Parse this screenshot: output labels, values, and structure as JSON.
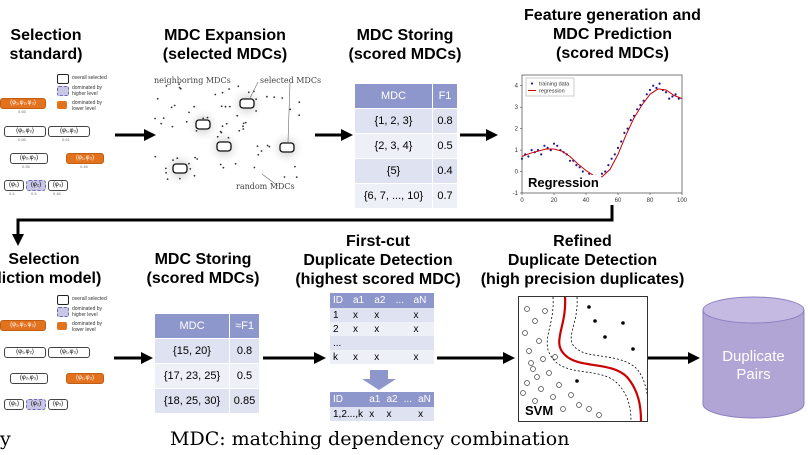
{
  "headers": {
    "sel_std": [
      "Selection",
      "standard)"
    ],
    "expansion": [
      "MDC Expansion",
      "(selected MDCs)"
    ],
    "storing1": [
      "MDC Storing",
      "(scored MDCs)"
    ],
    "featgen": [
      "Feature generation and",
      "MDC Prediction",
      "(scored MDCs)"
    ],
    "sel_pred": [
      "Selection",
      "diction model)"
    ],
    "storing2": [
      "MDC Storing",
      "(scored MDCs)"
    ],
    "firstcut": [
      "First-cut",
      "Duplicate Detection",
      "(highest scored MDC)"
    ],
    "refined": [
      "Refined",
      "Duplicate Detection",
      "(high precision duplicates)"
    ]
  },
  "legend": {
    "overall": "overall selected",
    "higher": "dominated by higher level",
    "lower": "dominated by lower level"
  },
  "expansion_labels": {
    "neighboring": "neighboring MDCs",
    "selected": "selected MDCs",
    "random": "random MDCs"
  },
  "table1": {
    "headers": [
      "MDC",
      "F1"
    ],
    "rows": [
      [
        "{1, 2, 3}",
        "0.8"
      ],
      [
        "{2, 3, 4}",
        "0.5"
      ],
      [
        "{5}",
        "0.4"
      ],
      [
        "{6, 7, ..., 10}",
        "0.7"
      ]
    ]
  },
  "table2": {
    "headers": [
      "MDC",
      "≈F1"
    ],
    "rows": [
      [
        "{15, 20}",
        "0.8"
      ],
      [
        "{17, 23, 25}",
        "0.5"
      ],
      [
        "{18, 25, 30}",
        "0.85"
      ]
    ]
  },
  "dup_table": {
    "headers": [
      "ID",
      "a1",
      "a2",
      "...",
      "aN"
    ],
    "rows": [
      [
        "1",
        "x",
        "x",
        "",
        "x"
      ],
      [
        "2",
        "x",
        "x",
        "",
        "x"
      ],
      [
        "...",
        "",
        "",
        "",
        ""
      ],
      [
        "k",
        "x",
        "x",
        "",
        "x"
      ]
    ]
  },
  "dup_result": {
    "headers": [
      "ID",
      "a1",
      "a2",
      "...",
      "aN"
    ],
    "row": [
      "1,2...,k",
      "x",
      "x",
      "",
      "x"
    ]
  },
  "chart_data": {
    "type": "scatter",
    "title": "",
    "label": "Regression",
    "xlim": [
      0,
      100
    ],
    "ylim": [
      -1,
      4.5
    ],
    "xticks": [
      "0",
      "20",
      "40",
      "60",
      "80",
      "100"
    ],
    "yticks": [
      "-1",
      "0",
      "1",
      "2",
      "3",
      "4"
    ],
    "legend": {
      "position": "top-left",
      "entries": [
        "training data",
        "regression"
      ]
    },
    "series": [
      {
        "name": "training data",
        "kind": "points",
        "x": [
          0,
          2,
          4,
          6,
          8,
          10,
          12,
          14,
          16,
          18,
          20,
          22,
          24,
          26,
          28,
          30,
          32,
          34,
          36,
          38,
          40,
          42,
          44,
          46,
          48,
          50,
          52,
          54,
          56,
          58,
          60,
          62,
          64,
          66,
          68,
          70,
          72,
          74,
          76,
          78,
          80,
          82,
          84,
          86,
          88,
          90,
          92,
          94,
          96,
          98
        ],
        "y": [
          0.6,
          0.8,
          0.7,
          1.0,
          0.9,
          1.0,
          0.8,
          1.2,
          1.1,
          1.0,
          1.3,
          1.2,
          1.0,
          0.9,
          0.8,
          0.5,
          0.5,
          0.3,
          0.2,
          0.0,
          -0.2,
          -0.1,
          -0.3,
          -0.2,
          -0.4,
          -0.1,
          0.0,
          0.3,
          0.6,
          0.8,
          1.1,
          1.4,
          1.8,
          2.0,
          2.4,
          2.6,
          2.9,
          3.1,
          3.3,
          3.6,
          3.8,
          4.0,
          3.9,
          4.1,
          3.8,
          3.7,
          3.4,
          3.5,
          3.6,
          3.4
        ]
      },
      {
        "name": "regression",
        "kind": "line",
        "x": [
          0,
          5,
          10,
          15,
          20,
          25,
          30,
          35,
          40,
          45,
          50,
          55,
          60,
          65,
          70,
          75,
          80,
          85,
          90,
          95,
          100
        ],
        "y": [
          0.7,
          0.85,
          0.95,
          1.05,
          1.05,
          0.95,
          0.7,
          0.35,
          0.05,
          -0.2,
          -0.25,
          0.1,
          0.8,
          1.7,
          2.5,
          3.1,
          3.6,
          3.85,
          3.8,
          3.55,
          3.4
        ]
      }
    ]
  },
  "svm_label": "SVM",
  "cylinder": [
    "Duplicate",
    "Pairs"
  ],
  "caption": "MDC: matching dependency combination",
  "corner_text": "y",
  "chips_top": {
    "row1": [
      {
        "t": "(φ₁,φ₂,φ₃)",
        "v": "0.66"
      }
    ],
    "row2": [
      {
        "t": "(φ₁,φ₂)",
        "v": "0.66"
      },
      {
        "t": "(φ₁,φ₃)",
        "v": "0.61"
      }
    ],
    "row3": [
      {
        "t": "(φ₂,φ₃)",
        "v": "0.55"
      },
      {
        "t": "(φ₁,φ₃)",
        "v": "0.46"
      }
    ],
    "row4": [
      {
        "t": "(φ₁)",
        "v": "0.4"
      },
      {
        "t": "(φ₂)",
        "v": "0.5"
      },
      {
        "t": "(φ₃)",
        "v": "0.46"
      }
    ]
  },
  "colors": {
    "purple": "#8e97cc",
    "orange": "#e3721f",
    "cylinder": "#b1a5d6",
    "red": "#cc0000"
  }
}
